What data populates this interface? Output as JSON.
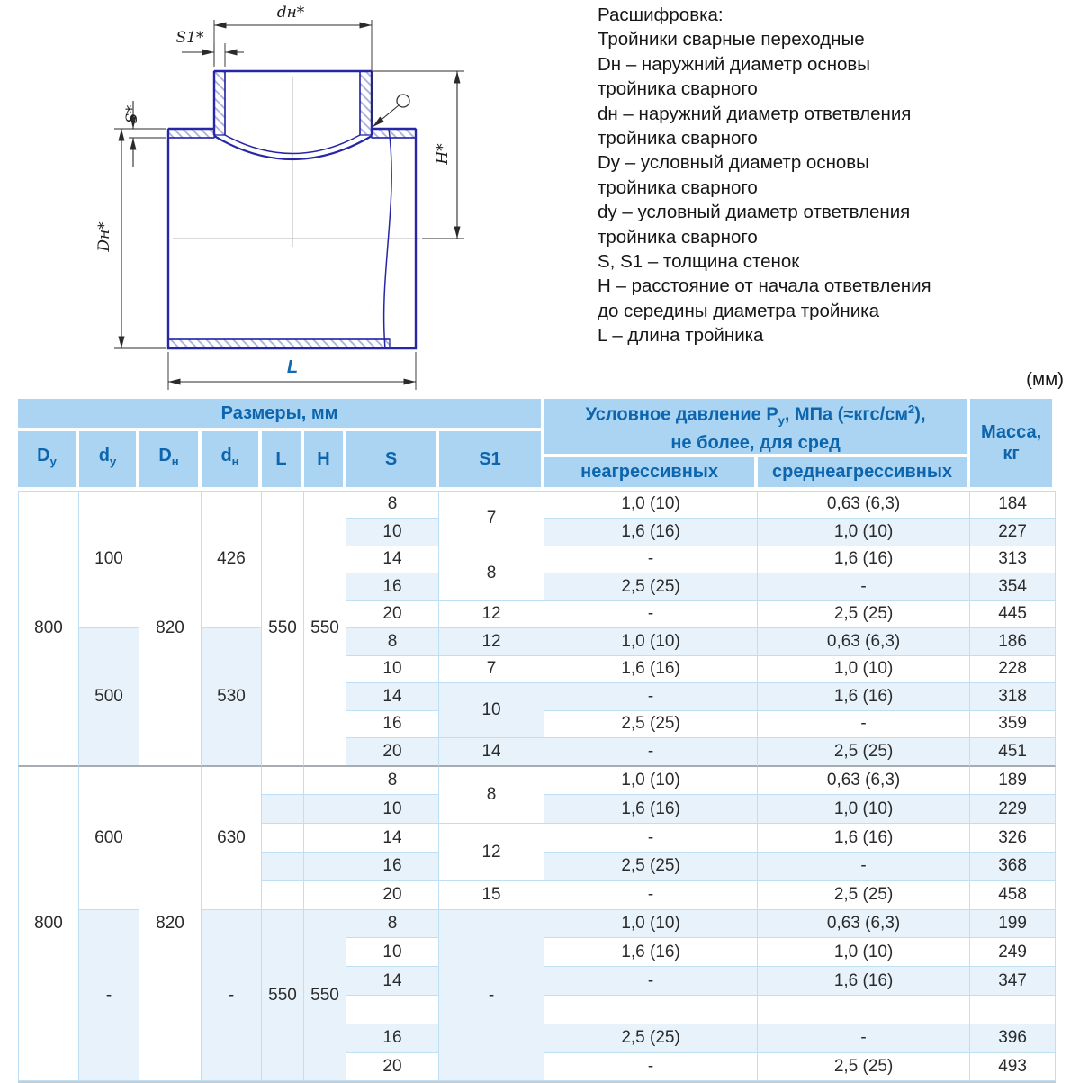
{
  "units_note": "(мм)",
  "legend": {
    "lines": [
      "Расшифровка:",
      "Тройники сварные переходные",
      "Dн – наружний диаметр основы",
      "тройника сварного",
      "dн – наружний диаметр ответвления",
      "тройника сварного",
      "Dy – условный диаметр основы",
      "тройника сварного",
      "dy – условный диаметр ответвления",
      "тройника сварного",
      "S, S1 – толщина стенок",
      "H – расстояние от начала ответвления",
      "до середины диаметра тройника",
      "L – длина тройника"
    ]
  },
  "drawing": {
    "labels": {
      "dn": "dн*",
      "s1": "S1*",
      "s": "S*",
      "Dn": "Dн*",
      "h": "H*",
      "l": "L"
    }
  },
  "colors": {
    "accent_blue": "#0d66ad",
    "header_bg": "#abd4f2",
    "row_tint": "#e7f2fb",
    "grid_border": "#bedff6",
    "section_divider": "#a7adb2",
    "drawing_line": "#2626a6",
    "l_label_blue": "#1467b0"
  },
  "table": {
    "header": {
      "razmery": [
        {
          "t": "Размеры, мм"
        }
      ],
      "pressure": [
        {
          "t": "Условное давление P"
        },
        {
          "t": "у",
          "v": "sub"
        },
        {
          "t": ", МПа (≈кгс/см"
        },
        {
          "t": "2",
          "v": "sup"
        },
        {
          "t": "),"
        },
        {
          "v": "br"
        },
        {
          "t": "не более, для сред"
        }
      ],
      "massa": [
        {
          "t": "Масса,"
        },
        {
          "v": "br"
        },
        {
          "t": "кг"
        }
      ],
      "cols": [
        [
          {
            "t": "D"
          },
          {
            "t": "у",
            "v": "sub"
          }
        ],
        [
          {
            "t": "d"
          },
          {
            "t": "у",
            "v": "sub"
          }
        ],
        [
          {
            "t": "D"
          },
          {
            "t": "н",
            "v": "sub"
          }
        ],
        [
          {
            "t": "d"
          },
          {
            "t": "н",
            "v": "sub"
          }
        ],
        [
          {
            "t": "L"
          }
        ],
        [
          {
            "t": "H"
          }
        ],
        [
          {
            "t": "S"
          }
        ],
        [
          {
            "t": "S1"
          }
        ]
      ],
      "sub_cols": [
        "неагрессивных",
        "среднеагрессивных"
      ]
    },
    "sections": [
      {
        "rows": [
          {
            "cls": "r0 top",
            "cells": [
              {
                "t": "800",
                "rs": 10,
                "c": "mb divb bl"
              },
              {
                "t": "100",
                "rs": 5,
                "c": "mw"
              },
              {
                "t": "820",
                "rs": 10,
                "c": "mw divb"
              },
              {
                "t": "426",
                "rs": 5,
                "c": "mw"
              },
              {
                "t": "550",
                "rs": 10,
                "c": "mw divb"
              },
              {
                "t": "550",
                "rs": 10,
                "c": "mw divb"
              },
              {
                "t": "8"
              },
              {
                "t": "7",
                "rs": 2,
                "c": "mw"
              },
              {
                "t": "1,0 (10)"
              },
              {
                "t": "0,63 (6,3)"
              },
              {
                "t": "184"
              }
            ]
          },
          {
            "cls": "r1",
            "cells": [
              {
                "t": "10"
              },
              {
                "t": "1,6 (16)"
              },
              {
                "t": "1,0 (10)"
              },
              {
                "t": "227"
              }
            ]
          },
          {
            "cls": "r0",
            "cells": [
              {
                "t": "14"
              },
              {
                "t": "8",
                "rs": 2,
                "c": "mw"
              },
              {
                "t": "-"
              },
              {
                "t": "1,6 (16)"
              },
              {
                "t": "313"
              }
            ]
          },
          {
            "cls": "r1",
            "cells": [
              {
                "t": "16"
              },
              {
                "t": "2,5 (25)"
              },
              {
                "t": "-"
              },
              {
                "t": "354"
              }
            ]
          },
          {
            "cls": "r0",
            "cells": [
              {
                "t": "20"
              },
              {
                "t": "12",
                "c": "mw"
              },
              {
                "t": "-"
              },
              {
                "t": "2,5 (25)"
              },
              {
                "t": "445"
              }
            ]
          },
          {
            "cls": "r1",
            "cells": [
              {
                "t": "500",
                "rs": 5,
                "c": "mb divb"
              },
              {
                "t": "530",
                "rs": 5,
                "c": "mb divb"
              },
              {
                "t": "8"
              },
              {
                "t": "12",
                "c": "mb"
              },
              {
                "t": "1,0 (10)"
              },
              {
                "t": "0,63 (6,3)"
              },
              {
                "t": "186"
              }
            ]
          },
          {
            "cls": "r0",
            "cells": [
              {
                "t": "10"
              },
              {
                "t": "7",
                "c": "mw"
              },
              {
                "t": "1,6 (16)"
              },
              {
                "t": "1,0 (10)"
              },
              {
                "t": "228"
              }
            ]
          },
          {
            "cls": "r1",
            "cells": [
              {
                "t": "14"
              },
              {
                "t": "10",
                "rs": 2,
                "c": "mb"
              },
              {
                "t": "-"
              },
              {
                "t": "1,6 (16)"
              },
              {
                "t": "318"
              }
            ]
          },
          {
            "cls": "r0",
            "cells": [
              {
                "t": "16"
              },
              {
                "t": "2,5 (25)"
              },
              {
                "t": "-"
              },
              {
                "t": "359"
              }
            ]
          },
          {
            "cls": "r1",
            "cells": [
              {
                "t": "20",
                "c": "divb"
              },
              {
                "t": "14",
                "c": "mb divb"
              },
              {
                "t": "-",
                "c": "divb"
              },
              {
                "t": "2,5 (25)",
                "c": "divb"
              },
              {
                "t": "451",
                "c": "divb"
              }
            ]
          }
        ]
      },
      {
        "rows": [
          {
            "cls": "r0",
            "cells": [
              {
                "t": "800",
                "rs": 11,
                "c": "mb bl"
              },
              {
                "t": "600",
                "rs": 5,
                "c": "mw"
              },
              {
                "t": "820",
                "rs": 11,
                "c": "mw"
              },
              {
                "t": "630",
                "rs": 5,
                "c": "mw"
              },
              {
                "t": ""
              },
              {
                "t": ""
              },
              {
                "t": "8"
              },
              {
                "t": "8",
                "rs": 2,
                "c": "mw"
              },
              {
                "t": "1,0 (10)"
              },
              {
                "t": "0,63 (6,3)"
              },
              {
                "t": "189"
              }
            ]
          },
          {
            "cls": "r1",
            "cells": [
              {
                "t": ""
              },
              {
                "t": ""
              },
              {
                "t": "10"
              },
              {
                "t": "1,6 (16)"
              },
              {
                "t": "1,0 (10)"
              },
              {
                "t": "229"
              }
            ]
          },
          {
            "cls": "r0",
            "cells": [
              {
                "t": ""
              },
              {
                "t": ""
              },
              {
                "t": "14"
              },
              {
                "t": "12",
                "rs": 2,
                "c": "mw"
              },
              {
                "t": "-"
              },
              {
                "t": "1,6 (16)"
              },
              {
                "t": "326"
              }
            ]
          },
          {
            "cls": "r1",
            "cells": [
              {
                "t": ""
              },
              {
                "t": ""
              },
              {
                "t": "16"
              },
              {
                "t": "2,5 (25)"
              },
              {
                "t": "-"
              },
              {
                "t": "368"
              }
            ]
          },
          {
            "cls": "r0",
            "cells": [
              {
                "t": ""
              },
              {
                "t": ""
              },
              {
                "t": "20"
              },
              {
                "t": "15",
                "c": "mw"
              },
              {
                "t": "-"
              },
              {
                "t": "2,5 (25)"
              },
              {
                "t": "458"
              }
            ]
          },
          {
            "cls": "r1",
            "cells": [
              {
                "t": "-",
                "rs": 6,
                "c": "mw"
              },
              {
                "t": "-",
                "rs": 6,
                "c": "mw"
              },
              {
                "t": "550",
                "rs": 6,
                "c": "mw"
              },
              {
                "t": "550",
                "rs": 6,
                "c": "mw"
              },
              {
                "t": "8"
              },
              {
                "t": "-",
                "rs": 6,
                "c": "mb"
              },
              {
                "t": "1,0 (10)"
              },
              {
                "t": "0,63 (6,3)"
              },
              {
                "t": "199"
              }
            ]
          },
          {
            "cls": "r0",
            "cells": [
              {
                "t": "10"
              },
              {
                "t": "1,6 (16)"
              },
              {
                "t": "1,0 (10)"
              },
              {
                "t": "249"
              }
            ]
          },
          {
            "cls": "r1",
            "cells": [
              {
                "t": "14"
              },
              {
                "t": "-"
              },
              {
                "t": "1,6 (16)"
              },
              {
                "t": "347"
              }
            ]
          },
          {
            "cls": "r0",
            "cells": [
              {
                "t": ""
              },
              {
                "t": ""
              },
              {
                "t": ""
              },
              {
                "t": ""
              }
            ]
          },
          {
            "cls": "r1",
            "cells": [
              {
                "t": "16"
              },
              {
                "t": "2,5 (25)"
              },
              {
                "t": "-"
              },
              {
                "t": "396"
              }
            ]
          },
          {
            "cls": "r0",
            "cells": [
              {
                "t": "20"
              },
              {
                "t": "-"
              },
              {
                "t": "2,5 (25)"
              },
              {
                "t": "493"
              }
            ]
          }
        ]
      }
    ]
  }
}
